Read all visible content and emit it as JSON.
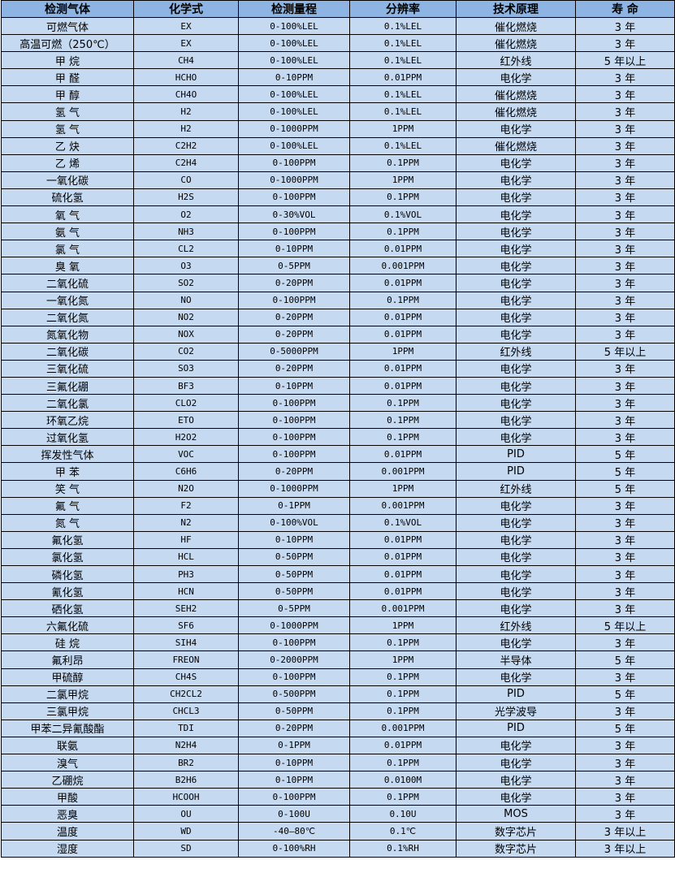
{
  "header": [
    "检测气体",
    "化学式",
    "检测量程",
    "分辨率",
    "技术原理",
    "寿 命"
  ],
  "rows": [
    [
      "可燃气体",
      "EX",
      "0-100%LEL",
      "0.1%LEL",
      "催化燃烧",
      "3 年"
    ],
    [
      "高温可燃（250℃）",
      "EX",
      "0-100%LEL",
      "0.1%LEL",
      "催化燃烧",
      "3 年"
    ],
    [
      "甲 烷",
      "CH4",
      "0-100%LEL",
      "0.1%LEL",
      "红外线",
      "5 年以上"
    ],
    [
      "甲 醛",
      "HCHO",
      "0-10PPM",
      "0.01PPM",
      "电化学",
      "3 年"
    ],
    [
      "甲 醇",
      "CH4O",
      "0-100%LEL",
      "0.1%LEL",
      "催化燃烧",
      "3 年"
    ],
    [
      "氢 气",
      "H2",
      "0-100%LEL",
      "0.1%LEL",
      "催化燃烧",
      "3 年"
    ],
    [
      "氢 气",
      "H2",
      "0-1000PPM",
      "1PPM",
      "电化学",
      "3 年"
    ],
    [
      "乙 炔",
      "C2H2",
      "0-100%LEL",
      "0.1%LEL",
      "催化燃烧",
      "3 年"
    ],
    [
      "乙 烯",
      "C2H4",
      "0-100PPM",
      "0.1PPM",
      "电化学",
      "3 年"
    ],
    [
      "一氧化碳",
      "CO",
      "0-1000PPM",
      "1PPM",
      "电化学",
      "3 年"
    ],
    [
      "硫化氢",
      "H2S",
      "0-100PPM",
      "0.1PPM",
      "电化学",
      "3 年"
    ],
    [
      "氧 气",
      "O2",
      "0-30%VOL",
      "0.1%VOL",
      "电化学",
      "3 年"
    ],
    [
      "氨 气",
      "NH3",
      "0-100PPM",
      "0.1PPM",
      "电化学",
      "3 年"
    ],
    [
      "氯 气",
      "CL2",
      "0-10PPM",
      "0.01PPM",
      "电化学",
      "3 年"
    ],
    [
      "臭 氧",
      "O3",
      "0-5PPM",
      "0.001PPM",
      "电化学",
      "3 年"
    ],
    [
      "二氧化硫",
      "SO2",
      "0-20PPM",
      "0.01PPM",
      "电化学",
      "3 年"
    ],
    [
      "一氧化氮",
      "NO",
      "0-100PPM",
      "0.1PPM",
      "电化学",
      "3 年"
    ],
    [
      "二氧化氮",
      "NO2",
      "0-20PPM",
      "0.01PPM",
      "电化学",
      "3 年"
    ],
    [
      "氮氧化物",
      "NOX",
      "0-20PPM",
      "0.01PPM",
      "电化学",
      "3 年"
    ],
    [
      "二氧化碳",
      "CO2",
      "0-5000PPM",
      "1PPM",
      "红外线",
      "5 年以上"
    ],
    [
      "三氧化硫",
      "SO3",
      "0-20PPM",
      "0.01PPM",
      "电化学",
      "3 年"
    ],
    [
      "三氟化硼",
      "BF3",
      "0-10PPM",
      "0.01PPM",
      "电化学",
      "3 年"
    ],
    [
      "二氧化氯",
      "CLO2",
      "0-100PPM",
      "0.1PPM",
      "电化学",
      "3 年"
    ],
    [
      "环氧乙烷",
      "ETO",
      "0-100PPM",
      "0.1PPM",
      "电化学",
      "3 年"
    ],
    [
      "过氧化氢",
      "H2O2",
      "0-100PPM",
      "0.1PPM",
      "电化学",
      "3 年"
    ],
    [
      "挥发性气体",
      "VOC",
      "0-100PPM",
      "0.01PPM",
      "PID",
      "5 年"
    ],
    [
      "甲 苯",
      "C6H6",
      "0-20PPM",
      "0.001PPM",
      "PID",
      "5 年"
    ],
    [
      "笑 气",
      "N2O",
      "0-1000PPM",
      "1PPM",
      "红外线",
      "5 年"
    ],
    [
      "氟 气",
      "F2",
      "0-1PPM",
      "0.001PPM",
      "电化学",
      "3 年"
    ],
    [
      "氮 气",
      "N2",
      "0-100%VOL",
      "0.1%VOL",
      "电化学",
      "3 年"
    ],
    [
      "氟化氢",
      "HF",
      "0-10PPM",
      "0.01PPM",
      "电化学",
      "3 年"
    ],
    [
      "氯化氢",
      "HCL",
      "0-50PPM",
      "0.01PPM",
      "电化学",
      "3 年"
    ],
    [
      "磷化氢",
      "PH3",
      "0-50PPM",
      "0.01PPM",
      "电化学",
      "3 年"
    ],
    [
      "氰化氢",
      "HCN",
      "0-50PPM",
      "0.01PPM",
      "电化学",
      "3 年"
    ],
    [
      "硒化氢",
      "SEH2",
      "0-5PPM",
      "0.001PPM",
      "电化学",
      "3 年"
    ],
    [
      "六氟化硫",
      "SF6",
      "0-1000PPM",
      "1PPM",
      "红外线",
      "5 年以上"
    ],
    [
      "硅 烷",
      "SIH4",
      "0-100PPM",
      "0.1PPM",
      "电化学",
      "3 年"
    ],
    [
      "氟利昂",
      "FREON",
      "0-2000PPM",
      "1PPM",
      "半导体",
      "5 年"
    ],
    [
      "甲硫醇",
      "CH4S",
      "0-100PPM",
      "0.1PPM",
      "电化学",
      "3 年"
    ],
    [
      "二氯甲烷",
      "CH2CL2",
      "0-500PPM",
      "0.1PPM",
      "PID",
      "5 年"
    ],
    [
      "三氯甲烷",
      "CHCL3",
      "0-50PPM",
      "0.1PPM",
      "光学波导",
      "3 年"
    ],
    [
      "甲苯二异氰酸酯",
      "TDI",
      "0-20PPM",
      "0.001PPM",
      "PID",
      "5 年"
    ],
    [
      "联氨",
      "N2H4",
      "0-1PPM",
      "0.01PPM",
      "电化学",
      "3 年"
    ],
    [
      "溴气",
      "BR2",
      "0-10PPM",
      "0.1PPM",
      "电化学",
      "3 年"
    ],
    [
      "乙硼烷",
      "B2H6",
      "0-10PPM",
      "0.0100M",
      "电化学",
      "3 年"
    ],
    [
      "甲酸",
      "HCOOH",
      "0-100PPM",
      "0.1PPM",
      "电化学",
      "3 年"
    ],
    [
      "恶臭",
      "OU",
      "0-100U",
      "0.10U",
      "MOS",
      "3 年"
    ],
    [
      "温度",
      "WD",
      "-40—80℃",
      "0.1℃",
      "数字芯片",
      "3 年以上"
    ],
    [
      "湿度",
      "SD",
      "0-100%RH",
      "0.1%RH",
      "数字芯片",
      "3 年以上"
    ]
  ],
  "colors": {
    "header_bg": "#8DB4E2",
    "row_bg": "#C5D9F1",
    "border": "#000000"
  }
}
